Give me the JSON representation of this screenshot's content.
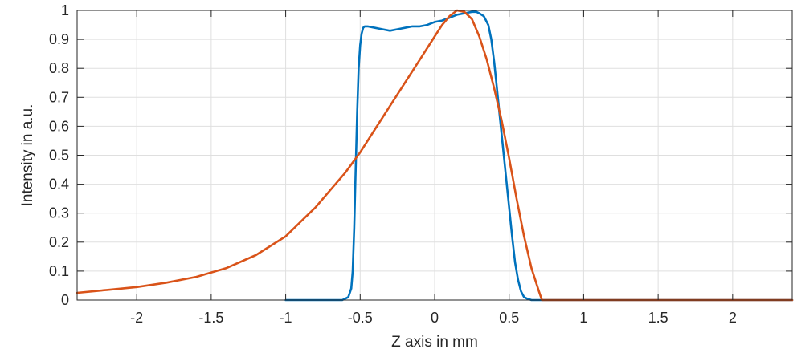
{
  "chart_data": {
    "type": "line",
    "title": "",
    "xlabel": "Z axis in mm",
    "ylabel": "Intensity in a.u.",
    "xlim": [
      -2.4,
      2.4
    ],
    "ylim": [
      0,
      1
    ],
    "grid": true,
    "xticks": [
      -2,
      -1.5,
      -1,
      -0.5,
      0,
      0.5,
      1,
      1.5,
      2
    ],
    "xtick_labels": [
      "-2",
      "-1.5",
      "-1",
      "-0.5",
      "0",
      "0.5",
      "1",
      "1.5",
      "2"
    ],
    "yticks": [
      0,
      0.1,
      0.2,
      0.3,
      0.4,
      0.5,
      0.6,
      0.7,
      0.8,
      0.9,
      1
    ],
    "ytick_labels": [
      "0",
      "0.1",
      "0.2",
      "0.3",
      "0.4",
      "0.5",
      "0.6",
      "0.7",
      "0.8",
      "0.9",
      "1"
    ],
    "series": [
      {
        "color": "#0072BD",
        "x": [
          -1.0,
          -0.7,
          -0.62,
          -0.58,
          -0.56,
          -0.55,
          -0.54,
          -0.53,
          -0.52,
          -0.51,
          -0.5,
          -0.49,
          -0.48,
          -0.47,
          -0.45,
          -0.4,
          -0.35,
          -0.3,
          -0.25,
          -0.2,
          -0.15,
          -0.1,
          -0.05,
          0.0,
          0.05,
          0.1,
          0.15,
          0.2,
          0.25,
          0.28,
          0.3,
          0.33,
          0.36,
          0.38,
          0.4,
          0.42,
          0.44,
          0.46,
          0.48,
          0.5,
          0.52,
          0.54,
          0.56,
          0.58,
          0.6,
          0.62,
          0.65,
          0.7,
          1.0,
          2.4
        ],
        "y": [
          0.0,
          0.0,
          0.0,
          0.01,
          0.04,
          0.1,
          0.25,
          0.45,
          0.65,
          0.8,
          0.88,
          0.92,
          0.94,
          0.945,
          0.945,
          0.94,
          0.935,
          0.93,
          0.935,
          0.94,
          0.945,
          0.945,
          0.95,
          0.96,
          0.965,
          0.975,
          0.985,
          0.99,
          0.995,
          0.995,
          0.99,
          0.98,
          0.95,
          0.9,
          0.82,
          0.72,
          0.62,
          0.52,
          0.42,
          0.32,
          0.22,
          0.13,
          0.07,
          0.03,
          0.01,
          0.005,
          0.0,
          0.0,
          0.0,
          0.0
        ]
      },
      {
        "color": "#D95319",
        "x": [
          -2.4,
          -2.2,
          -2.0,
          -1.8,
          -1.6,
          -1.4,
          -1.2,
          -1.0,
          -0.9,
          -0.8,
          -0.7,
          -0.6,
          -0.5,
          -0.4,
          -0.3,
          -0.2,
          -0.1,
          0.0,
          0.05,
          0.1,
          0.15,
          0.2,
          0.25,
          0.3,
          0.35,
          0.4,
          0.45,
          0.5,
          0.55,
          0.6,
          0.65,
          0.7,
          0.72,
          0.8,
          1.0,
          2.4
        ],
        "y": [
          0.025,
          0.035,
          0.045,
          0.06,
          0.08,
          0.11,
          0.155,
          0.22,
          0.27,
          0.32,
          0.38,
          0.44,
          0.51,
          0.59,
          0.67,
          0.75,
          0.83,
          0.91,
          0.95,
          0.98,
          1.0,
          0.995,
          0.97,
          0.91,
          0.83,
          0.73,
          0.62,
          0.49,
          0.35,
          0.22,
          0.11,
          0.03,
          0.0,
          0.0,
          0.0,
          0.0
        ]
      }
    ]
  }
}
